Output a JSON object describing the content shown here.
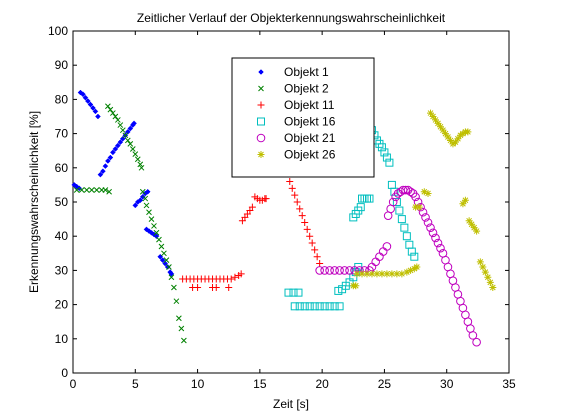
{
  "chart_data": {
    "type": "scatter",
    "title": "Zeitlicher Verlauf der Objekterkennungswahrscheinlichkeit",
    "xlabel": "Zeit [s]",
    "ylabel": "Erkennungswahrscheinlichkeit [%]",
    "xlim": [
      0,
      35
    ],
    "ylim": [
      0,
      100
    ],
    "xticks": [
      0,
      5,
      10,
      15,
      20,
      25,
      30,
      35
    ],
    "yticks": [
      0,
      10,
      20,
      30,
      40,
      50,
      60,
      70,
      80,
      90,
      100
    ],
    "grid": false,
    "legend_position": "top-center",
    "series": [
      {
        "name": "Objekt 1",
        "marker": "dot",
        "color": "#0000ff",
        "points": [
          [
            0.1,
            55
          ],
          [
            0.3,
            54.5
          ],
          [
            0.5,
            54
          ],
          [
            0.6,
            82
          ],
          [
            0.8,
            81.5
          ],
          [
            1.0,
            80.5
          ],
          [
            1.2,
            79.5
          ],
          [
            1.4,
            78.5
          ],
          [
            1.6,
            77.5
          ],
          [
            1.8,
            76.5
          ],
          [
            2.0,
            75
          ],
          [
            2.2,
            58
          ],
          [
            2.4,
            59
          ],
          [
            2.6,
            60.5
          ],
          [
            2.8,
            62
          ],
          [
            3.0,
            63
          ],
          [
            3.2,
            64.5
          ],
          [
            3.4,
            65.5
          ],
          [
            3.6,
            66.5
          ],
          [
            3.8,
            67.5
          ],
          [
            4.0,
            68.5
          ],
          [
            4.2,
            69.5
          ],
          [
            4.4,
            70.5
          ],
          [
            4.6,
            71.5
          ],
          [
            4.8,
            72.5
          ],
          [
            4.9,
            73
          ],
          [
            5.0,
            49
          ],
          [
            5.2,
            50
          ],
          [
            5.4,
            50.5
          ],
          [
            5.6,
            51.5
          ],
          [
            5.8,
            52.5
          ],
          [
            6.0,
            53
          ],
          [
            5.9,
            42
          ],
          [
            6.1,
            41.5
          ],
          [
            6.3,
            41
          ],
          [
            6.5,
            40.5
          ],
          [
            6.7,
            40
          ],
          [
            7.0,
            34
          ],
          [
            7.2,
            33
          ],
          [
            7.4,
            32
          ],
          [
            7.6,
            31
          ],
          [
            7.8,
            29.5
          ],
          [
            7.9,
            29
          ]
        ]
      },
      {
        "name": "Objekt 2",
        "marker": "x",
        "color": "#008000",
        "points": [
          [
            0.3,
            53.5
          ],
          [
            0.7,
            53.5
          ],
          [
            1.1,
            53.5
          ],
          [
            1.5,
            53.5
          ],
          [
            1.9,
            53.5
          ],
          [
            2.3,
            53.5
          ],
          [
            2.6,
            53.5
          ],
          [
            2.9,
            53
          ],
          [
            2.8,
            78
          ],
          [
            3.0,
            77
          ],
          [
            3.2,
            76
          ],
          [
            3.4,
            75
          ],
          [
            3.6,
            74
          ],
          [
            3.8,
            72.5
          ],
          [
            4.0,
            71
          ],
          [
            4.2,
            69.5
          ],
          [
            4.4,
            68
          ],
          [
            4.6,
            67
          ],
          [
            4.8,
            65.5
          ],
          [
            5.0,
            64
          ],
          [
            5.2,
            62.5
          ],
          [
            5.4,
            61
          ],
          [
            5.5,
            60
          ],
          [
            5.6,
            53
          ],
          [
            5.8,
            51
          ],
          [
            5.9,
            49
          ],
          [
            6.1,
            47
          ],
          [
            6.3,
            45
          ],
          [
            6.5,
            43
          ],
          [
            6.7,
            41
          ],
          [
            6.9,
            39
          ],
          [
            7.1,
            37
          ],
          [
            7.3,
            35
          ],
          [
            7.5,
            33
          ],
          [
            7.7,
            31
          ],
          [
            7.9,
            28
          ],
          [
            8.1,
            25
          ],
          [
            8.3,
            21
          ],
          [
            8.5,
            16
          ],
          [
            8.7,
            13
          ],
          [
            8.9,
            9.5
          ]
        ]
      },
      {
        "name": "Objekt 11",
        "marker": "plus",
        "color": "#ff0000",
        "points": [
          [
            8.8,
            27.5
          ],
          [
            9.1,
            27.5
          ],
          [
            9.4,
            27.5
          ],
          [
            9.7,
            27.5
          ],
          [
            10.0,
            27.5
          ],
          [
            10.3,
            27.5
          ],
          [
            10.6,
            27.5
          ],
          [
            10.9,
            27.5
          ],
          [
            11.2,
            27.5
          ],
          [
            11.5,
            27.5
          ],
          [
            11.8,
            27.5
          ],
          [
            12.1,
            27.5
          ],
          [
            12.4,
            27.5
          ],
          [
            12.7,
            27.5
          ],
          [
            13.0,
            28
          ],
          [
            13.3,
            28.5
          ],
          [
            13.5,
            29
          ],
          [
            9.6,
            25
          ],
          [
            10.0,
            25
          ],
          [
            11.2,
            25
          ],
          [
            11.5,
            25
          ],
          [
            12.5,
            25
          ],
          [
            13.6,
            44.5
          ],
          [
            13.8,
            45.5
          ],
          [
            14.0,
            46.5
          ],
          [
            14.2,
            47.5
          ],
          [
            14.4,
            48.5
          ],
          [
            14.6,
            51.5
          ],
          [
            14.8,
            51
          ],
          [
            15.0,
            50.5
          ],
          [
            15.2,
            50.5
          ],
          [
            15.4,
            51
          ],
          [
            15.5,
            51
          ],
          [
            17.4,
            56
          ],
          [
            17.6,
            54
          ],
          [
            17.8,
            52
          ],
          [
            18.0,
            50
          ],
          [
            18.2,
            48
          ],
          [
            18.4,
            46
          ],
          [
            18.6,
            44
          ],
          [
            18.8,
            42
          ],
          [
            19.0,
            40
          ],
          [
            19.2,
            38
          ],
          [
            19.4,
            36
          ],
          [
            19.6,
            34
          ],
          [
            19.8,
            32
          ]
        ]
      },
      {
        "name": "Objekt 16",
        "marker": "square",
        "color": "#00bfbf",
        "points": [
          [
            17.3,
            23.5
          ],
          [
            17.7,
            23.5
          ],
          [
            18.1,
            23.5
          ],
          [
            17.8,
            19.5
          ],
          [
            18.2,
            19.5
          ],
          [
            18.6,
            19.5
          ],
          [
            19.0,
            19.5
          ],
          [
            19.4,
            19.5
          ],
          [
            19.8,
            19.5
          ],
          [
            20.2,
            19.5
          ],
          [
            20.6,
            19.5
          ],
          [
            21.0,
            19.5
          ],
          [
            21.4,
            19.5
          ],
          [
            21.3,
            24
          ],
          [
            21.6,
            24.5
          ],
          [
            21.9,
            25.5
          ],
          [
            22.2,
            26.5
          ],
          [
            22.5,
            28
          ],
          [
            22.7,
            29.5
          ],
          [
            22.9,
            31
          ],
          [
            22.5,
            45.5
          ],
          [
            22.7,
            46.5
          ],
          [
            22.9,
            47.5
          ],
          [
            23.1,
            48.5
          ],
          [
            23.2,
            51
          ],
          [
            23.4,
            51
          ],
          [
            23.6,
            51
          ],
          [
            23.8,
            51
          ],
          [
            23.8,
            72.5
          ],
          [
            24.0,
            71
          ],
          [
            24.2,
            69.5
          ],
          [
            24.4,
            68
          ],
          [
            24.6,
            67
          ],
          [
            24.8,
            66
          ],
          [
            25.0,
            64.5
          ],
          [
            25.2,
            63
          ],
          [
            25.4,
            61.5
          ],
          [
            25.6,
            55
          ],
          [
            25.8,
            53
          ],
          [
            26.0,
            50
          ],
          [
            26.2,
            47.5
          ],
          [
            26.4,
            45
          ],
          [
            26.6,
            42.5
          ],
          [
            26.8,
            40
          ],
          [
            27.0,
            37.5
          ],
          [
            27.2,
            35.5
          ],
          [
            27.4,
            34
          ]
        ]
      },
      {
        "name": "Objekt 21",
        "marker": "circle",
        "color": "#bf00bf",
        "points": [
          [
            19.8,
            30
          ],
          [
            20.2,
            30
          ],
          [
            20.6,
            30
          ],
          [
            21.0,
            30
          ],
          [
            21.4,
            30
          ],
          [
            21.8,
            30
          ],
          [
            22.2,
            30
          ],
          [
            22.6,
            30
          ],
          [
            23.0,
            30
          ],
          [
            23.4,
            30
          ],
          [
            23.8,
            30
          ],
          [
            24.0,
            31
          ],
          [
            24.3,
            32.5
          ],
          [
            24.6,
            34
          ],
          [
            24.9,
            35.5
          ],
          [
            25.2,
            37
          ],
          [
            25.3,
            46
          ],
          [
            25.5,
            48
          ],
          [
            25.7,
            50
          ],
          [
            25.9,
            51.5
          ],
          [
            26.1,
            52.5
          ],
          [
            26.3,
            53
          ],
          [
            26.5,
            53.5
          ],
          [
            26.7,
            53.5
          ],
          [
            26.9,
            53.5
          ],
          [
            27.1,
            53
          ],
          [
            27.3,
            52.5
          ],
          [
            27.5,
            51.5
          ],
          [
            27.7,
            50
          ],
          [
            27.9,
            48.5
          ],
          [
            28.1,
            47
          ],
          [
            28.3,
            45.5
          ],
          [
            28.5,
            44
          ],
          [
            28.7,
            42.5
          ],
          [
            28.9,
            41
          ],
          [
            29.1,
            39.5
          ],
          [
            29.3,
            38
          ],
          [
            29.5,
            36.5
          ],
          [
            29.7,
            35
          ],
          [
            29.9,
            33
          ],
          [
            30.1,
            31
          ],
          [
            30.3,
            29
          ],
          [
            30.5,
            27
          ],
          [
            30.7,
            25
          ],
          [
            30.9,
            23
          ],
          [
            31.1,
            21
          ],
          [
            31.3,
            19
          ],
          [
            31.5,
            17
          ],
          [
            31.7,
            15
          ],
          [
            31.9,
            13
          ],
          [
            32.1,
            11
          ],
          [
            32.4,
            9
          ]
        ]
      },
      {
        "name": "Objekt 26",
        "marker": "star",
        "color": "#bfbf00",
        "points": [
          [
            22.5,
            25.5
          ],
          [
            22.7,
            25.5
          ],
          [
            22.8,
            29
          ],
          [
            23.2,
            29
          ],
          [
            23.6,
            29
          ],
          [
            24.0,
            29
          ],
          [
            24.4,
            29
          ],
          [
            24.8,
            29
          ],
          [
            25.2,
            29
          ],
          [
            25.6,
            29
          ],
          [
            26.0,
            29
          ],
          [
            26.4,
            29
          ],
          [
            26.8,
            29.5
          ],
          [
            27.1,
            30
          ],
          [
            27.4,
            30.5
          ],
          [
            27.6,
            31
          ],
          [
            27.5,
            48.5
          ],
          [
            27.8,
            48.5
          ],
          [
            28.2,
            53
          ],
          [
            28.5,
            52.5
          ],
          [
            28.7,
            76
          ],
          [
            28.9,
            75
          ],
          [
            29.1,
            74
          ],
          [
            29.3,
            73
          ],
          [
            29.5,
            72
          ],
          [
            29.7,
            71
          ],
          [
            29.9,
            70
          ],
          [
            30.1,
            69
          ],
          [
            30.3,
            68
          ],
          [
            30.5,
            67
          ],
          [
            30.7,
            67.5
          ],
          [
            30.9,
            68.5
          ],
          [
            31.1,
            69.5
          ],
          [
            31.3,
            70
          ],
          [
            31.5,
            70.5
          ],
          [
            31.7,
            70.5
          ],
          [
            31.3,
            49.5
          ],
          [
            31.5,
            50.5
          ],
          [
            31.8,
            44.5
          ],
          [
            32.0,
            43.5
          ],
          [
            32.2,
            42.5
          ],
          [
            32.4,
            41.5
          ],
          [
            32.7,
            32.5
          ],
          [
            32.9,
            31
          ],
          [
            33.1,
            29.5
          ],
          [
            33.3,
            28
          ],
          [
            33.5,
            26.5
          ],
          [
            33.7,
            25
          ]
        ]
      }
    ]
  }
}
